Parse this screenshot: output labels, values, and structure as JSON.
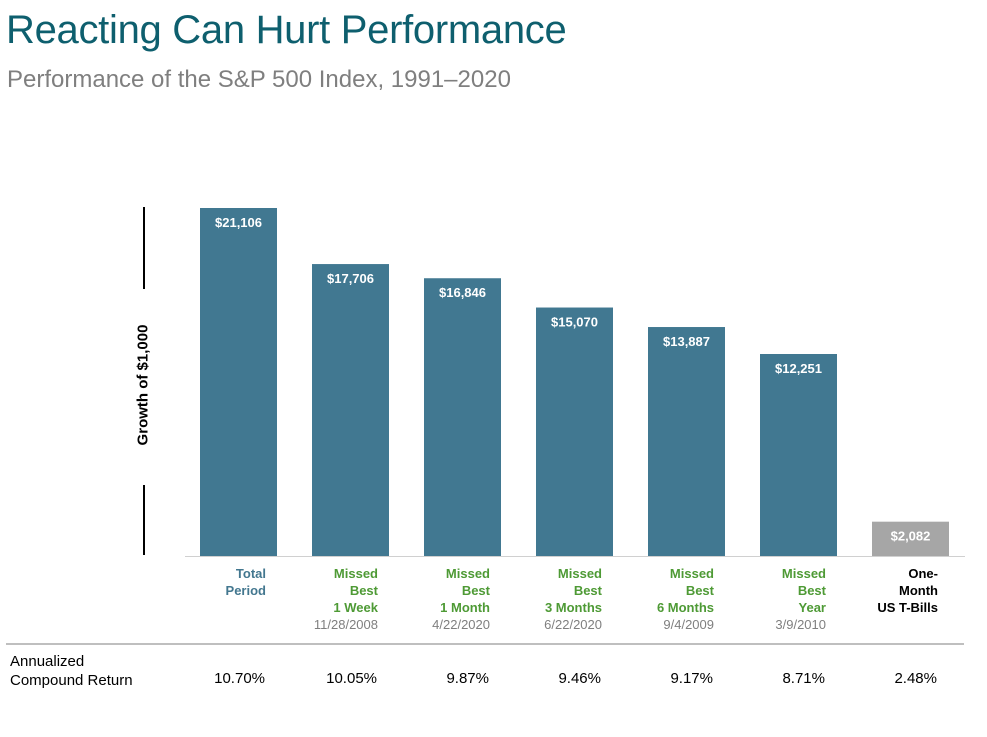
{
  "header": {
    "title": "Reacting Can Hurt Performance",
    "subtitle": "Performance of the S&P 500 Index, 1991–2020"
  },
  "chart_data": {
    "type": "bar",
    "title": "Reacting Can Hurt Performance",
    "subtitle": "Performance of the S&P 500 Index, 1991–2020",
    "ylabel": "Growth of $1,000",
    "xlabel": "",
    "ylim": [
      0,
      21106
    ],
    "grid": false,
    "categories": [
      {
        "lines": [
          "Total",
          "Period"
        ],
        "date": "",
        "color": "#43778f"
      },
      {
        "lines": [
          "Missed",
          "Best",
          "1 Week"
        ],
        "date": "11/28/2008",
        "color": "#4e9a35"
      },
      {
        "lines": [
          "Missed",
          "Best",
          "1 Month"
        ],
        "date": "4/22/2020",
        "color": "#4e9a35"
      },
      {
        "lines": [
          "Missed",
          "Best",
          "3 Months"
        ],
        "date": "6/22/2020",
        "color": "#4e9a35"
      },
      {
        "lines": [
          "Missed",
          "Best",
          "6 Months"
        ],
        "date": "9/4/2009",
        "color": "#4e9a35"
      },
      {
        "lines": [
          "Missed",
          "Best",
          "Year"
        ],
        "date": "3/9/2010",
        "color": "#4e9a35"
      },
      {
        "lines": [
          "One-",
          "Month",
          "US T-Bills"
        ],
        "date": "",
        "color": "#000000"
      }
    ],
    "values": [
      21106,
      17706,
      16846,
      15070,
      13887,
      12251,
      2082
    ],
    "value_labels": [
      "$21,106",
      "$17,706",
      "$16,846",
      "$15,070",
      "$13,887",
      "$12,251",
      "$2,082"
    ],
    "bar_colors": [
      "#417891",
      "#417891",
      "#417891",
      "#417891",
      "#417891",
      "#417891",
      "#a6a6a6"
    ],
    "annualized_label": [
      "Annualized",
      "Compound Return"
    ],
    "annualized_returns": [
      "10.70%",
      "10.05%",
      "9.87%",
      "9.46%",
      "9.17%",
      "8.71%",
      "2.48%"
    ]
  }
}
